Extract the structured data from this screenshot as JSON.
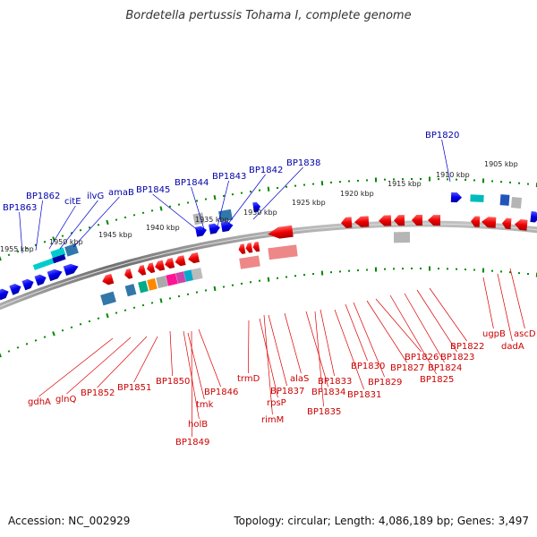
{
  "title": "Bordetella pertussis Tohama I, complete genome",
  "footer": {
    "accession": "Accession: NC_002929",
    "summary": "Topology: circular; Length: 4,086,189 bp; Genes: 3,497"
  },
  "colors": {
    "forward_gene": "#0000ee",
    "reverse_gene": "#ee0000",
    "label_blue": "#0000aa",
    "label_red": "#cc0000",
    "tick": "#008800",
    "backbone": "#808080"
  },
  "scale_labels": [
    "1955 kbp",
    "1950 kbp",
    "1945 kbp",
    "1940 kbp",
    "1935 kbp",
    "1930 kbp",
    "1925 kbp",
    "1920 kbp",
    "1915 kbp",
    "1910 kbp",
    "1905 kbp"
  ],
  "forward_labels": [
    "BP1863",
    "BP1862",
    "citE",
    "ilvG",
    "amaB",
    "BP1845",
    "BP1844",
    "BP1843",
    "BP1842",
    "BP1838",
    "BP1820"
  ],
  "reverse_labels": [
    "gdhA",
    "glnQ",
    "BP1852",
    "BP1851",
    "BP1850",
    "holB",
    "BP1849",
    "tmk",
    "BP1846",
    "trmD",
    "rpsP",
    "rimM",
    "BP1837",
    "alaS",
    "BP1834",
    "BP1835",
    "BP1833",
    "BP1831",
    "BP1830",
    "BP1829",
    "BP1827",
    "BP1826",
    "BP1825",
    "BP1824",
    "BP1823",
    "BP1822",
    "ugpB",
    "dadA",
    "ascD"
  ]
}
